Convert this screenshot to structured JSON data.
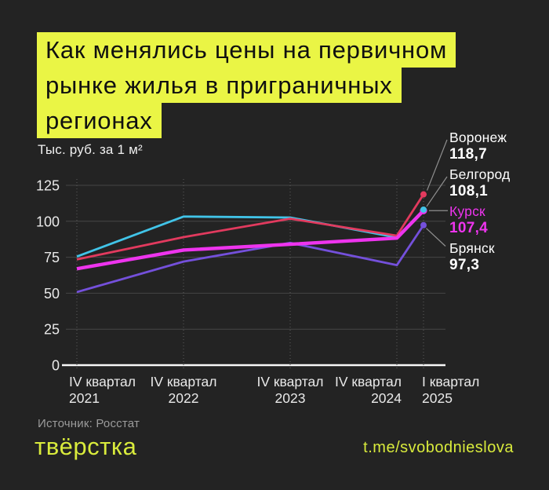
{
  "page": {
    "title_lines": [
      "Как менялись цены на первичном",
      "рынке жилья в приграничных",
      "регионах"
    ],
    "units_label": "Тыс. руб. за 1 м²",
    "source": "Источник: Росстат",
    "logo": "твёрстка",
    "telegram": "t.me/svobodnieslova"
  },
  "colors": {
    "background": "#232323",
    "accent_lime": "#EAF545",
    "footer_lime": "#D9EB3C",
    "voronezh_red": "#E23A5E",
    "belgorod_cyan": "#41C4E8",
    "kursk_magenta": "#EE34EE",
    "bryansk_purple": "#7450DB",
    "gridline": "#464646",
    "zero_line": "#F8F8F8",
    "axis_text": "#E9E9E9",
    "muted_text": "#9B9B9B",
    "connector": "#8F8F8F"
  },
  "chart_data": {
    "type": "line",
    "title": "Как менялись цены на первичном рынке жилья в приграничных регионах",
    "ylabel": "Тыс. руб. за 1 м²",
    "categories": [
      "IV квартал 2021",
      "IV квартал 2022",
      "IV квартал 2023",
      "IV квартал 2024",
      "I квартал 2025"
    ],
    "x_quarter_offsets": [
      0,
      4,
      8,
      12,
      13
    ],
    "yticks": [
      0,
      25,
      50,
      75,
      100,
      125
    ],
    "ylim": [
      0,
      130
    ],
    "grid": true,
    "legend_position": "right",
    "series": [
      {
        "name": "Белгород",
        "color": "#41C4E8",
        "values": [
          75.5,
          103.3,
          102.6,
          88.8,
          108.1
        ],
        "final_label": "108,1",
        "highlight": false
      },
      {
        "name": "Воронеж",
        "color": "#E23A5E",
        "values": [
          73.5,
          89.0,
          101.8,
          90.0,
          118.7
        ],
        "final_label": "118,7",
        "highlight": false
      },
      {
        "name": "Брянск",
        "color": "#7450DB",
        "values": [
          50.8,
          72.0,
          85.0,
          69.5,
          97.3
        ],
        "final_label": "97,3",
        "highlight": false
      },
      {
        "name": "Курск",
        "color": "#EE34EE",
        "values": [
          67.0,
          80.0,
          84.0,
          88.3,
          107.4
        ],
        "final_label": "107,4",
        "highlight": true
      }
    ]
  },
  "legend": {
    "items": [
      {
        "city": "Воронеж",
        "value": "118,7",
        "series": "Воронеж"
      },
      {
        "city": "Белгород",
        "value": "108,1",
        "series": "Белгород"
      },
      {
        "city": "Курск",
        "value": "107,4",
        "series": "Курск"
      },
      {
        "city": "Брянск",
        "value": "97,3",
        "series": "Брянск"
      }
    ]
  }
}
